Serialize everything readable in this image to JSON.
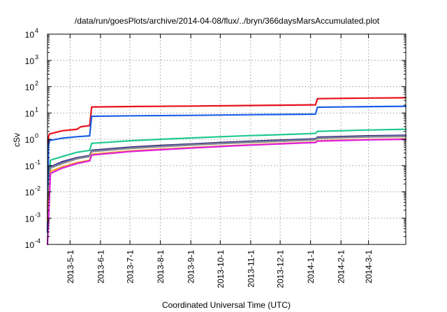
{
  "chart_data": {
    "type": "line",
    "title": "/data/run/goesPlots/archive/2014-04-08/flux/../bryn/366daysMarsAccumulated.plot",
    "xlabel": "Coordinated Universal Time (UTC)",
    "ylabel": "cSv",
    "y_scale": "log",
    "ylim": [
      0.0001,
      10000
    ],
    "xlim": [
      "2013-04-08",
      "2014-04-08"
    ],
    "grid": true,
    "x_ticks": [
      "2013-5-1",
      "2013-6-1",
      "2013-7-1",
      "2013-8-1",
      "2013-9-1",
      "2013-10-1",
      "2013-11-1",
      "2013-12-1",
      "2014-1-1",
      "2014-2-1",
      "2014-3-1"
    ],
    "y_ticks": [
      {
        "value": 0.0001,
        "base": "10",
        "exp": "-4"
      },
      {
        "value": 0.001,
        "base": "10",
        "exp": "-3"
      },
      {
        "value": 0.01,
        "base": "10",
        "exp": "-2"
      },
      {
        "value": 0.1,
        "base": "10",
        "exp": "-1"
      },
      {
        "value": 1,
        "base": "10",
        "exp": "0"
      },
      {
        "value": 10,
        "base": "10",
        "exp": "1"
      },
      {
        "value": 100,
        "base": "10",
        "exp": "2"
      },
      {
        "value": 1000,
        "base": "10",
        "exp": "3"
      },
      {
        "value": 10000,
        "base": "10",
        "exp": "4"
      }
    ],
    "series": [
      {
        "color": "#e8101a",
        "points": [
          [
            "2013-04-08",
            0.0003
          ],
          [
            "2013-04-09",
            1.2
          ],
          [
            "2013-04-10",
            1.6
          ],
          [
            "2013-04-23",
            2.1
          ],
          [
            "2013-05-08",
            2.4
          ],
          [
            "2013-05-12",
            3.0
          ],
          [
            "2013-05-21",
            3.3
          ],
          [
            "2013-05-23",
            17
          ],
          [
            "2013-07-01",
            17.6
          ],
          [
            "2013-09-01",
            18.3
          ],
          [
            "2013-11-01",
            19.3
          ],
          [
            "2014-01-01",
            20.3
          ],
          [
            "2014-01-06",
            20.5
          ],
          [
            "2014-01-08",
            35
          ],
          [
            "2014-03-01",
            37
          ],
          [
            "2014-04-08",
            38
          ]
        ]
      },
      {
        "color": "#1a5ee8",
        "points": [
          [
            "2013-04-08",
            0.0003
          ],
          [
            "2013-04-09",
            0.6
          ],
          [
            "2013-04-10",
            0.9
          ],
          [
            "2013-04-23",
            1.1
          ],
          [
            "2013-05-08",
            1.25
          ],
          [
            "2013-05-21",
            1.35
          ],
          [
            "2013-05-23",
            7.5
          ],
          [
            "2013-07-01",
            7.8
          ],
          [
            "2013-09-01",
            8.1
          ],
          [
            "2013-11-01",
            8.6
          ],
          [
            "2014-01-01",
            9.0
          ],
          [
            "2014-01-06",
            9.1
          ],
          [
            "2014-01-08",
            16.5
          ],
          [
            "2014-03-01",
            17.5
          ],
          [
            "2014-04-08",
            18
          ]
        ]
      },
      {
        "color": "#1fc98f",
        "points": [
          [
            "2013-04-08",
            0.001
          ],
          [
            "2013-04-11",
            0.16
          ],
          [
            "2013-04-23",
            0.22
          ],
          [
            "2013-05-08",
            0.32
          ],
          [
            "2013-05-21",
            0.38
          ],
          [
            "2013-05-23",
            0.7
          ],
          [
            "2013-07-01",
            0.88
          ],
          [
            "2013-08-01",
            1.0
          ],
          [
            "2013-09-01",
            1.12
          ],
          [
            "2013-10-01",
            1.25
          ],
          [
            "2013-11-01",
            1.38
          ],
          [
            "2013-12-01",
            1.5
          ],
          [
            "2014-01-01",
            1.65
          ],
          [
            "2014-01-06",
            1.68
          ],
          [
            "2014-01-08",
            2.0
          ],
          [
            "2014-03-01",
            2.25
          ],
          [
            "2014-04-08",
            2.4
          ]
        ]
      },
      {
        "color": "#3b1f55",
        "points": [
          [
            "2013-04-08",
            0.001
          ],
          [
            "2013-04-11",
            0.09
          ],
          [
            "2013-04-23",
            0.14
          ],
          [
            "2013-05-08",
            0.2
          ],
          [
            "2013-05-21",
            0.24
          ],
          [
            "2013-05-23",
            0.38
          ],
          [
            "2013-07-01",
            0.5
          ],
          [
            "2013-08-01",
            0.58
          ],
          [
            "2013-09-01",
            0.66
          ],
          [
            "2013-10-01",
            0.75
          ],
          [
            "2013-11-01",
            0.84
          ],
          [
            "2013-12-01",
            0.93
          ],
          [
            "2014-01-01",
            1.02
          ],
          [
            "2014-01-06",
            1.04
          ],
          [
            "2014-01-08",
            1.2
          ],
          [
            "2014-03-01",
            1.35
          ],
          [
            "2014-04-08",
            1.42
          ]
        ]
      },
      {
        "color": "#5060d0",
        "points": [
          [
            "2013-04-08",
            0.001
          ],
          [
            "2013-04-11",
            0.085
          ],
          [
            "2013-04-23",
            0.13
          ],
          [
            "2013-05-08",
            0.19
          ],
          [
            "2013-05-21",
            0.23
          ],
          [
            "2013-05-23",
            0.36
          ],
          [
            "2013-07-01",
            0.47
          ],
          [
            "2013-08-01",
            0.55
          ],
          [
            "2013-09-01",
            0.63
          ],
          [
            "2013-10-01",
            0.71
          ],
          [
            "2013-11-01",
            0.8
          ],
          [
            "2013-12-01",
            0.88
          ],
          [
            "2014-01-01",
            0.97
          ],
          [
            "2014-01-06",
            0.99
          ],
          [
            "2014-01-08",
            1.14
          ],
          [
            "2014-03-01",
            1.28
          ],
          [
            "2014-04-08",
            1.35
          ]
        ]
      },
      {
        "color": "#8a8a8a",
        "points": [
          [
            "2013-04-08",
            0.001
          ],
          [
            "2013-04-11",
            0.08
          ],
          [
            "2013-04-23",
            0.12
          ],
          [
            "2013-05-08",
            0.18
          ],
          [
            "2013-05-21",
            0.22
          ],
          [
            "2013-05-23",
            0.34
          ],
          [
            "2013-07-01",
            0.45
          ],
          [
            "2013-08-01",
            0.52
          ],
          [
            "2013-09-01",
            0.6
          ],
          [
            "2013-10-01",
            0.68
          ],
          [
            "2013-11-01",
            0.76
          ],
          [
            "2013-12-01",
            0.84
          ],
          [
            "2014-01-01",
            0.93
          ],
          [
            "2014-01-06",
            0.95
          ],
          [
            "2014-01-08",
            1.08
          ],
          [
            "2014-03-01",
            1.22
          ],
          [
            "2014-04-08",
            1.28
          ]
        ]
      },
      {
        "color": "#f0a020",
        "points": [
          [
            "2013-04-08",
            0.0008
          ],
          [
            "2013-04-11",
            0.06
          ],
          [
            "2013-04-23",
            0.09
          ],
          [
            "2013-05-08",
            0.13
          ],
          [
            "2013-05-21",
            0.16
          ],
          [
            "2013-05-23",
            0.27
          ],
          [
            "2013-07-01",
            0.36
          ],
          [
            "2013-08-01",
            0.42
          ],
          [
            "2013-09-01",
            0.48
          ],
          [
            "2013-10-01",
            0.55
          ],
          [
            "2013-11-01",
            0.62
          ],
          [
            "2013-12-01",
            0.69
          ],
          [
            "2014-01-01",
            0.77
          ],
          [
            "2014-01-06",
            0.78
          ],
          [
            "2014-01-08",
            0.88
          ],
          [
            "2014-03-01",
            0.98
          ],
          [
            "2014-04-08",
            1.03
          ]
        ]
      },
      {
        "color": "#e020e0",
        "points": [
          [
            "2013-04-08",
            0.0001
          ],
          [
            "2013-04-11",
            0.05
          ],
          [
            "2013-04-23",
            0.08
          ],
          [
            "2013-05-08",
            0.12
          ],
          [
            "2013-05-21",
            0.15
          ],
          [
            "2013-05-23",
            0.25
          ],
          [
            "2013-07-01",
            0.34
          ],
          [
            "2013-08-01",
            0.4
          ],
          [
            "2013-09-01",
            0.46
          ],
          [
            "2013-10-01",
            0.53
          ],
          [
            "2013-11-01",
            0.6
          ],
          [
            "2013-12-01",
            0.67
          ],
          [
            "2014-01-01",
            0.74
          ],
          [
            "2014-01-06",
            0.75
          ],
          [
            "2014-01-08",
            0.85
          ],
          [
            "2014-03-01",
            0.95
          ],
          [
            "2014-04-08",
            1.0
          ]
        ]
      }
    ]
  }
}
